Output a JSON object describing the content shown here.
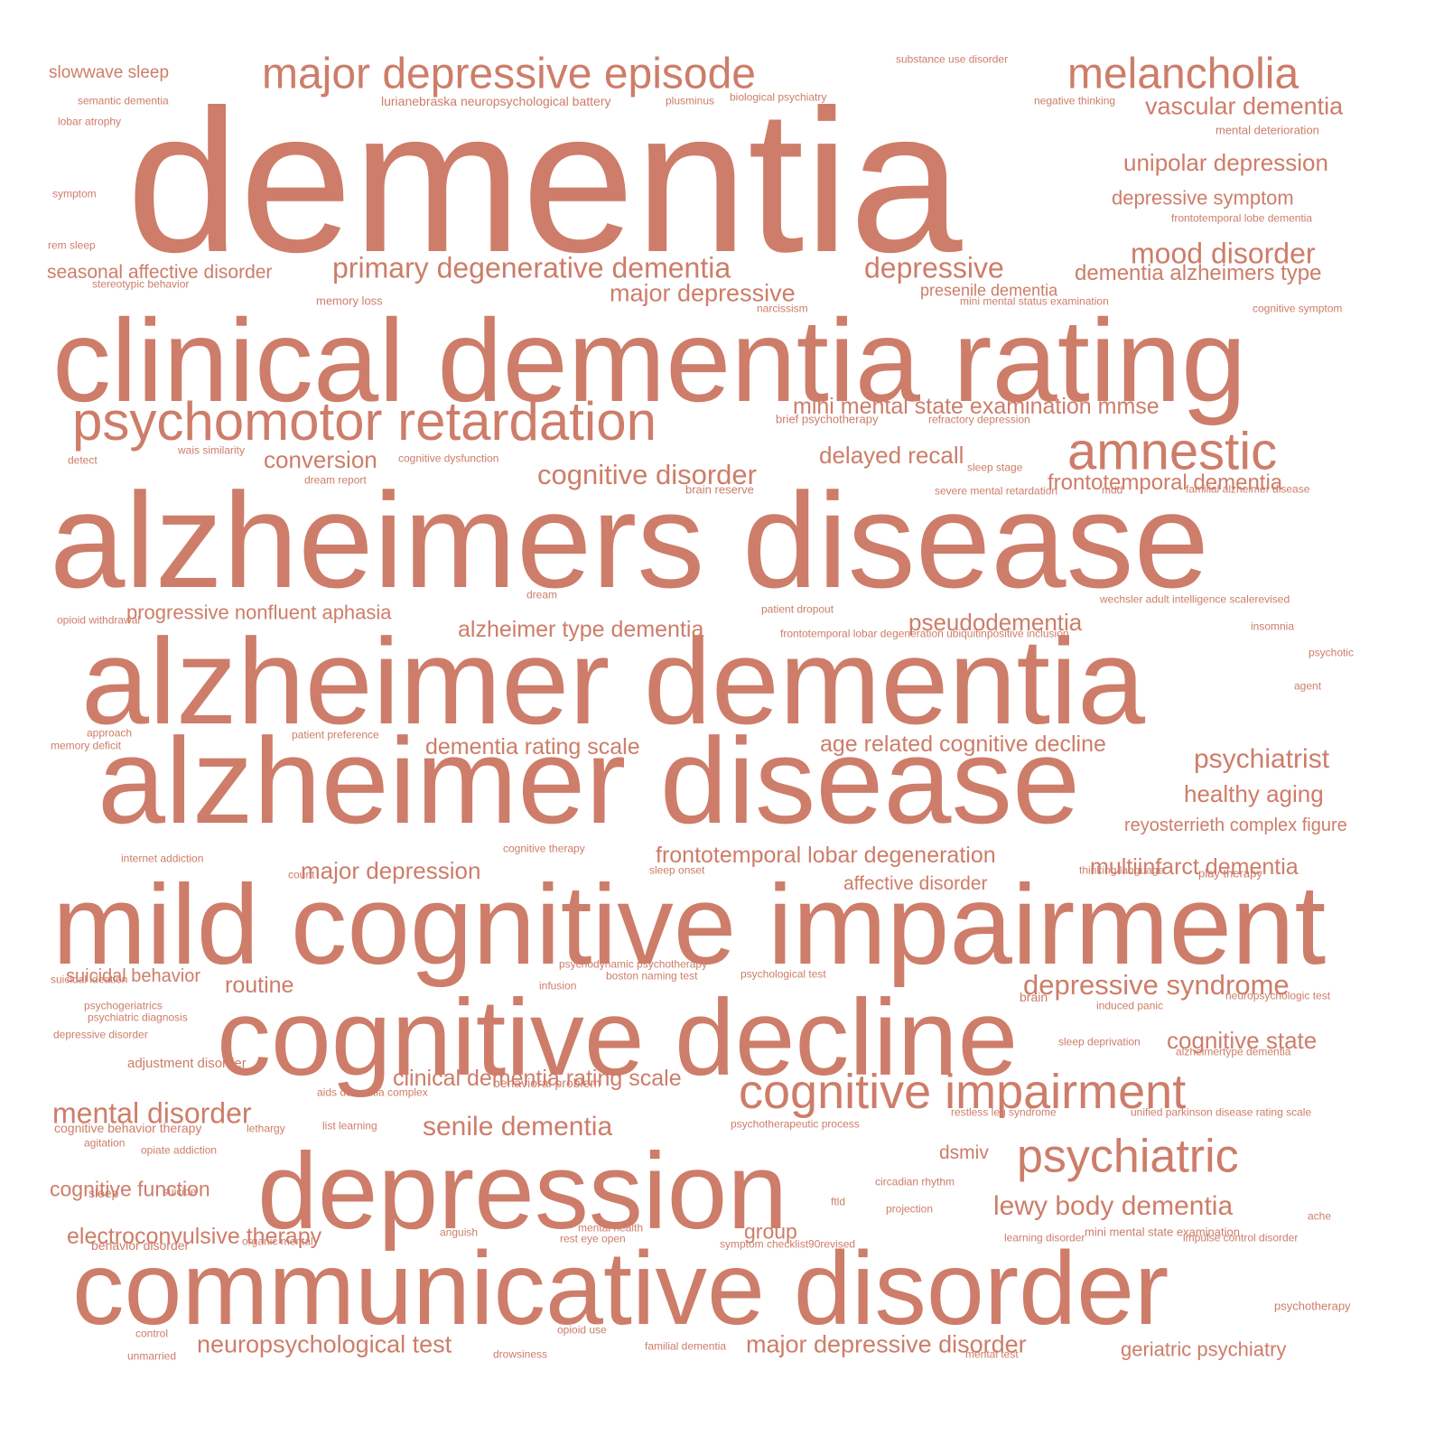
{
  "color": "#cd7d69",
  "words": [
    {
      "text": "dementia",
      "weight": 10
    },
    {
      "text": "clinical dementia rating",
      "weight": 8
    },
    {
      "text": "alzheimers disease",
      "weight": 9
    },
    {
      "text": "alzheimer dementia",
      "weight": 8.5
    },
    {
      "text": "alzheimer disease",
      "weight": 8.5
    },
    {
      "text": "mild cognitive impairment",
      "weight": 8.5
    },
    {
      "text": "cognitive decline",
      "weight": 8.5
    },
    {
      "text": "depression",
      "weight": 8.5
    },
    {
      "text": "communicative disorder",
      "weight": 8.5
    },
    {
      "text": "major depressive episode",
      "weight": 4
    },
    {
      "text": "melancholia",
      "weight": 4
    },
    {
      "text": "psychomotor retardation",
      "weight": 5.5
    },
    {
      "text": "amnestic",
      "weight": 5
    },
    {
      "text": "cognitive impairment",
      "weight": 5
    },
    {
      "text": "psychiatric",
      "weight": 4.5
    },
    {
      "text": "primary degenerative dementia",
      "weight": 3
    },
    {
      "text": "depressive",
      "weight": 3
    },
    {
      "text": "major depressive",
      "weight": 2.5
    },
    {
      "text": "mood disorder",
      "weight": 3
    },
    {
      "text": "vascular dementia",
      "weight": 2.5
    },
    {
      "text": "unipolar depression",
      "weight": 2.5
    },
    {
      "text": "depressive symptom",
      "weight": 2
    },
    {
      "text": "dementia alzheimers type",
      "weight": 2.5
    },
    {
      "text": "seasonal affective disorder",
      "weight": 2
    },
    {
      "text": "mini mental state examination mmse",
      "weight": 2.5
    },
    {
      "text": "conversion",
      "weight": 2.5
    },
    {
      "text": "delayed recall",
      "weight": 2.5
    },
    {
      "text": "cognitive disorder",
      "weight": 3
    },
    {
      "text": "frontotemporal dementia",
      "weight": 2.5
    },
    {
      "text": "progressive nonfluent aphasia",
      "weight": 2
    },
    {
      "text": "alzheimer type dementia",
      "weight": 2.5
    },
    {
      "text": "pseudodementia",
      "weight": 2.5
    },
    {
      "text": "dementia rating scale",
      "weight": 2.5
    },
    {
      "text": "age related cognitive decline",
      "weight": 2.5
    },
    {
      "text": "psychiatrist",
      "weight": 3
    },
    {
      "text": "healthy aging",
      "weight": 2.5
    },
    {
      "text": "reyosterrieth complex figure",
      "weight": 2
    },
    {
      "text": "frontotemporal lobar degeneration",
      "weight": 2.5
    },
    {
      "text": "major depression",
      "weight": 2.5
    },
    {
      "text": "multiinfarct dementia",
      "weight": 2.5
    },
    {
      "text": "affective disorder",
      "weight": 2
    },
    {
      "text": "suicidal behavior",
      "weight": 2
    },
    {
      "text": "routine",
      "weight": 2.5
    },
    {
      "text": "depressive syndrome",
      "weight": 3
    },
    {
      "text": "cognitive state",
      "weight": 2.5
    },
    {
      "text": "clinical dementia rating scale",
      "weight": 2.5
    },
    {
      "text": "mental disorder",
      "weight": 3
    },
    {
      "text": "senile dementia",
      "weight": 3
    },
    {
      "text": "dsmiv",
      "weight": 2
    },
    {
      "text": "cognitive function",
      "weight": 2
    },
    {
      "text": "lewy body dementia",
      "weight": 3
    },
    {
      "text": "electroconvulsive therapy",
      "weight": 2.5
    },
    {
      "text": "group",
      "weight": 2
    },
    {
      "text": "neuropsychological test",
      "weight": 2.5
    },
    {
      "text": "major depressive disorder",
      "weight": 2.5
    },
    {
      "text": "geriatric psychiatry",
      "weight": 2
    },
    {
      "text": "presenile dementia",
      "weight": 1.5
    },
    {
      "text": "slowwave sleep",
      "weight": 1.5
    },
    {
      "text": "mini mental state examination",
      "weight": 1
    },
    {
      "text": "substance use disorder",
      "weight": 0.5
    },
    {
      "text": "lurianebraska neuropsychological battery",
      "weight": 0.8
    },
    {
      "text": "plusminus",
      "weight": 0.5
    },
    {
      "text": "biological psychiatry",
      "weight": 0.5
    },
    {
      "text": "negative thinking",
      "weight": 0.5
    },
    {
      "text": "semantic dementia",
      "weight": 0.5
    },
    {
      "text": "lobar atrophy",
      "weight": 0.5
    },
    {
      "text": "mental deterioration",
      "weight": 0.5
    },
    {
      "text": "symptom",
      "weight": 0.5
    },
    {
      "text": "frontotemporal lobe dementia",
      "weight": 0.5
    },
    {
      "text": "rem sleep",
      "weight": 0.5
    },
    {
      "text": "stereotypic behavior",
      "weight": 0.5
    },
    {
      "text": "memory loss",
      "weight": 0.5
    },
    {
      "text": "narcissism",
      "weight": 0.5
    },
    {
      "text": "mini mental status examination",
      "weight": 0.5
    },
    {
      "text": "cognitive symptom",
      "weight": 0.5
    },
    {
      "text": "brief psychotherapy",
      "weight": 0.5
    },
    {
      "text": "refractory depression",
      "weight": 0.5
    },
    {
      "text": "wais similarity",
      "weight": 0.5
    },
    {
      "text": "detect",
      "weight": 0.5
    },
    {
      "text": "cognitive dysfunction",
      "weight": 0.5
    },
    {
      "text": "sleep stage",
      "weight": 0.5
    },
    {
      "text": "dream report",
      "weight": 0.5
    },
    {
      "text": "brain reserve",
      "weight": 0.5
    },
    {
      "text": "severe mental retardation",
      "weight": 0.5
    },
    {
      "text": "mdd",
      "weight": 0.5
    },
    {
      "text": "familial alzheimer disease",
      "weight": 0.5
    },
    {
      "text": "dream",
      "weight": 0.5
    },
    {
      "text": "wechsler adult intelligence scalerevised",
      "weight": 0.5
    },
    {
      "text": "opioid withdrawal",
      "weight": 0.5
    },
    {
      "text": "patient dropout",
      "weight": 0.5
    },
    {
      "text": "insomnia",
      "weight": 0.5
    },
    {
      "text": "frontotemporal lobar degeneration ubiquitinpositive inclusion",
      "weight": 0.5
    },
    {
      "text": "psychotic",
      "weight": 0.5
    },
    {
      "text": "agent",
      "weight": 0.5
    },
    {
      "text": "approach",
      "weight": 0.5
    },
    {
      "text": "memory deficit",
      "weight": 0.5
    },
    {
      "text": "patient preference",
      "weight": 0.5
    },
    {
      "text": "internet addiction",
      "weight": 0.5
    },
    {
      "text": "cognitive therapy",
      "weight": 0.5
    },
    {
      "text": "count",
      "weight": 0.5
    },
    {
      "text": "sleep onset",
      "weight": 0.5
    },
    {
      "text": "thinking language",
      "weight": 0.5
    },
    {
      "text": "play therapy",
      "weight": 0.5
    },
    {
      "text": "suicidal ideation",
      "weight": 0.5
    },
    {
      "text": "psychodynamic psychotherapy",
      "weight": 0.5
    },
    {
      "text": "boston naming test",
      "weight": 0.5
    },
    {
      "text": "psychological test",
      "weight": 0.5
    },
    {
      "text": "infusion",
      "weight": 0.5
    },
    {
      "text": "brain",
      "weight": 0.8
    },
    {
      "text": "neuropsychologic test",
      "weight": 0.5
    },
    {
      "text": "psychogeriatrics",
      "weight": 0.5
    },
    {
      "text": "induced panic",
      "weight": 0.5
    },
    {
      "text": "psychiatric diagnosis",
      "weight": 0.5
    },
    {
      "text": "depressive disorder",
      "weight": 0.5
    },
    {
      "text": "sleep deprivation",
      "weight": 0.5
    },
    {
      "text": "alzheimertype dementia",
      "weight": 0.5
    },
    {
      "text": "adjustment disorder",
      "weight": 0.8
    },
    {
      "text": "behavioral problem",
      "weight": 0.8
    },
    {
      "text": "aids dementia complex",
      "weight": 0.5
    },
    {
      "text": "restless leg syndrome",
      "weight": 0.5
    },
    {
      "text": "unified parkinson disease rating scale",
      "weight": 0.5
    },
    {
      "text": "cognitive behavior therapy",
      "weight": 0.8
    },
    {
      "text": "lethargy",
      "weight": 0.5
    },
    {
      "text": "list learning",
      "weight": 0.5
    },
    {
      "text": "psychotherapeutic process",
      "weight": 0.5
    },
    {
      "text": "agitation",
      "weight": 0.5
    },
    {
      "text": "opiate addiction",
      "weight": 0.5
    },
    {
      "text": "sleep",
      "weight": 0.8
    },
    {
      "text": "suicide",
      "weight": 0.5
    },
    {
      "text": "circadian rhythm",
      "weight": 0.5
    },
    {
      "text": "ftld",
      "weight": 0.5
    },
    {
      "text": "projection",
      "weight": 0.5
    },
    {
      "text": "ache",
      "weight": 0.5
    },
    {
      "text": "anguish",
      "weight": 0.5
    },
    {
      "text": "mental health",
      "weight": 0.5
    },
    {
      "text": "rest eye open",
      "weight": 0.5
    },
    {
      "text": "learning disorder",
      "weight": 0.5
    },
    {
      "text": "impulse control disorder",
      "weight": 0.5
    },
    {
      "text": "behavior disorder",
      "weight": 0.8
    },
    {
      "text": "organic mental",
      "weight": 0.5
    },
    {
      "text": "symptom checklist90revised",
      "weight": 0.5
    },
    {
      "text": "psychotherapy",
      "weight": 0.5
    },
    {
      "text": "control",
      "weight": 0.5
    },
    {
      "text": "opioid use",
      "weight": 0.5
    },
    {
      "text": "familial dementia",
      "weight": 0.5
    },
    {
      "text": "mental test",
      "weight": 0.5
    },
    {
      "text": "unmarried",
      "weight": 0.5
    },
    {
      "text": "drowsiness",
      "weight": 0.5
    }
  ]
}
